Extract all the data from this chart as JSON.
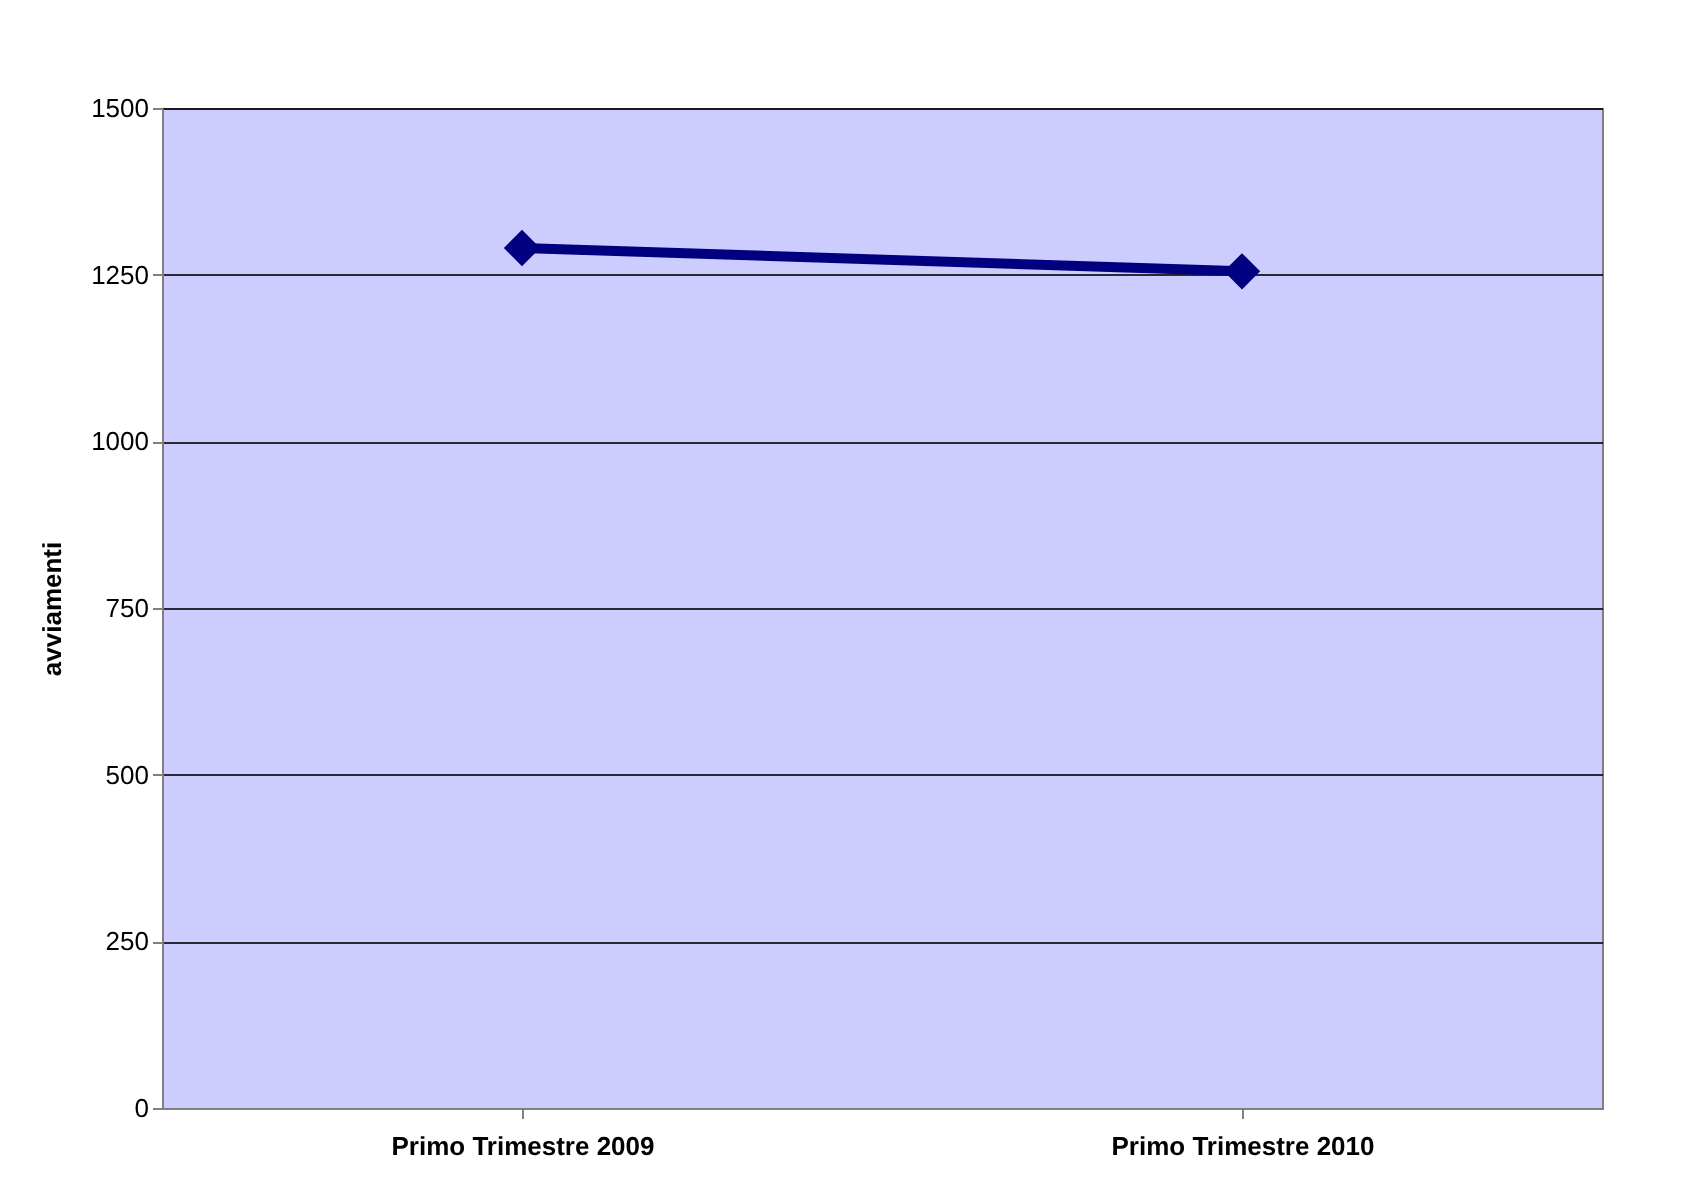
{
  "chart_data": {
    "type": "line",
    "ylabel": "avviamenti",
    "categories": [
      "Primo Trimestre 2009",
      "Primo Trimestre 2010"
    ],
    "series": [
      {
        "color": "#000080",
        "values": [
          1290,
          1255
        ]
      }
    ],
    "ylim": [
      0,
      1500
    ],
    "yticks": [
      0,
      250,
      500,
      750,
      1000,
      1250,
      1500
    ],
    "grid": "y",
    "marker": "diamond",
    "line_style": "solid",
    "legend": false
  }
}
